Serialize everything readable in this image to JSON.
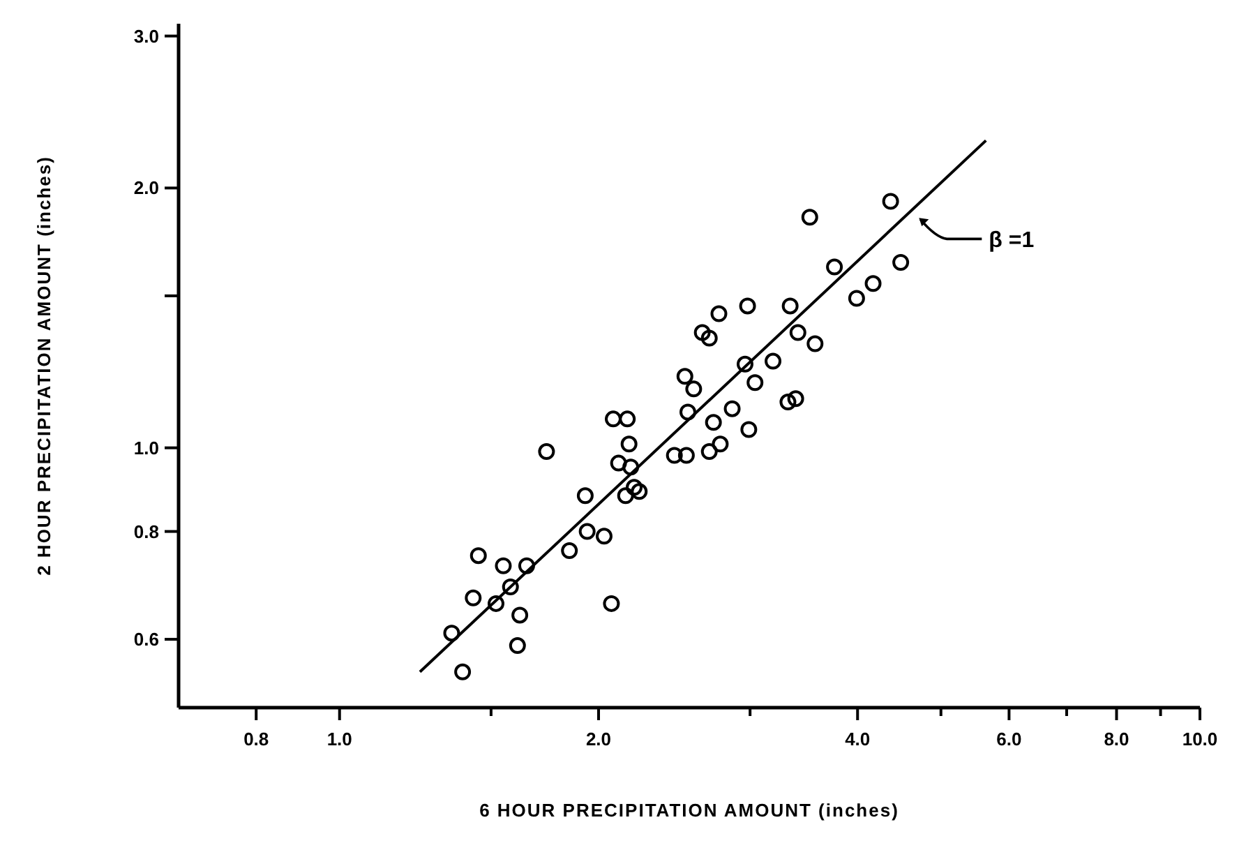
{
  "chart_data": {
    "type": "scatter",
    "xlabel": "6 HOUR PRECIPITATION AMOUNT (inches)",
    "ylabel": "2 HOUR PRECIPITATION AMOUNT (inches)",
    "log": "xy",
    "xlim": [
      0.65,
      10
    ],
    "ylim": [
      0.5,
      3.1
    ],
    "xticks": [
      0.8,
      {
        "value": 1,
        "label": "1.0"
      },
      {
        "value": 1.5,
        "label": null
      },
      {
        "value": 2,
        "label": "2.0"
      },
      {
        "value": 3,
        "label": null
      },
      {
        "value": 4,
        "label": "4.0"
      },
      {
        "value": 5,
        "label": null
      },
      {
        "value": 6,
        "label": "6.0"
      },
      {
        "value": 7,
        "label": null
      },
      {
        "value": 8,
        "label": "8.0"
      },
      {
        "value": 9,
        "label": null
      },
      {
        "value": 10,
        "label": "10.0"
      }
    ],
    "yticks": [
      0.6,
      0.8,
      {
        "value": 1,
        "label": "1.0"
      },
      {
        "value": 1.5,
        "label": null
      },
      {
        "value": 2,
        "label": "2.0"
      },
      {
        "value": 3,
        "label": "3.0"
      }
    ],
    "series": [
      {
        "marker": "circle",
        "color": "#000000",
        "x": [
          1.39,
          1.35,
          1.43,
          1.45,
          1.52,
          1.55,
          1.58,
          1.62,
          1.61,
          1.65,
          1.74,
          1.85,
          1.93,
          1.94,
          2.03,
          2.07,
          2.08,
          2.16,
          2.17,
          2.11,
          2.18,
          2.2,
          2.15,
          2.23,
          2.45,
          2.53,
          2.52,
          2.58,
          2.54,
          2.64,
          2.69,
          2.76,
          2.69,
          2.77,
          2.72,
          2.86,
          2.99,
          2.98,
          2.96,
          3.04,
          3.19,
          3.32,
          3.39,
          3.34,
          3.41,
          3.57,
          3.52,
          3.76,
          3.99,
          4.17,
          4.37,
          4.49
        ],
        "values": [
          0.55,
          0.61,
          0.67,
          0.75,
          0.66,
          0.73,
          0.69,
          0.64,
          0.59,
          0.73,
          0.99,
          0.76,
          0.88,
          0.8,
          0.79,
          0.66,
          1.08,
          1.08,
          1.01,
          0.96,
          0.95,
          0.9,
          0.88,
          0.89,
          0.98,
          0.98,
          1.21,
          1.17,
          1.1,
          1.36,
          1.34,
          1.43,
          0.99,
          1.01,
          1.07,
          1.11,
          1.05,
          1.46,
          1.25,
          1.19,
          1.26,
          1.13,
          1.14,
          1.46,
          1.36,
          1.32,
          1.85,
          1.62,
          1.49,
          1.55,
          1.93,
          1.64
        ]
      },
      {
        "type": "line",
        "color": "#000000",
        "x": [
          1.24,
          5.64
        ],
        "values": [
          0.55,
          2.27
        ]
      }
    ],
    "annotations": [
      {
        "text": "β =1",
        "x": 4.68,
        "y": 1.86
      }
    ]
  }
}
